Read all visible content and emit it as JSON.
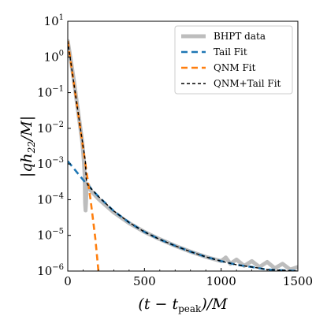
{
  "chart_data": {
    "type": "line",
    "title": "",
    "xlabel": "(t − t_peak)/M",
    "ylabel": "|q h22/M|",
    "xlim": [
      0,
      1500
    ],
    "ylim": [
      1e-06,
      10
    ],
    "yscale": "log",
    "grid": false,
    "legend_position": "top-right",
    "x_ticks": [
      {
        "value": 0,
        "label": "0"
      },
      {
        "value": 500,
        "label": "500"
      },
      {
        "value": 1000,
        "label": "1000"
      },
      {
        "value": 1500,
        "label": "1500"
      }
    ],
    "y_ticks": [
      {
        "value": 10,
        "base": "10",
        "exp": "1"
      },
      {
        "value": 1,
        "base": "10",
        "exp": "0"
      },
      {
        "value": 0.1,
        "base": "10",
        "exp": "−1"
      },
      {
        "value": 0.01,
        "base": "10",
        "exp": "−2"
      },
      {
        "value": 0.001,
        "base": "10",
        "exp": "−3"
      },
      {
        "value": 0.0001,
        "base": "10",
        "exp": "−4"
      },
      {
        "value": 1e-05,
        "base": "10",
        "exp": "−5"
      },
      {
        "value": 1e-06,
        "base": "10",
        "exp": "−6"
      }
    ],
    "series": [
      {
        "name": "BHPT data",
        "color": "#bdbdbd",
        "style": "solid-thick",
        "points": [
          [
            0,
            2.8
          ],
          [
            20,
            0.8
          ],
          [
            40,
            0.22
          ],
          [
            60,
            0.05
          ],
          [
            80,
            0.012
          ],
          [
            95,
            0.004
          ],
          [
            105,
            0.0012
          ],
          [
            110,
            0.0005
          ],
          [
            113,
            8e-05
          ],
          [
            116,
            5e-05
          ],
          [
            119,
            8e-05
          ],
          [
            122,
            0.00018
          ],
          [
            126,
            0.00028
          ],
          [
            130,
            0.00022
          ],
          [
            135,
            0.00025
          ],
          [
            150,
            0.00018
          ],
          [
            200,
            0.000105
          ],
          [
            300,
            4.4e-05
          ],
          [
            400,
            2.2e-05
          ],
          [
            500,
            1.25e-05
          ],
          [
            600,
            7.8e-06
          ],
          [
            700,
            5.1e-06
          ],
          [
            800,
            3.5e-06
          ],
          [
            900,
            2.5e-06
          ],
          [
            1000,
            1.9e-06
          ],
          [
            1030,
            2.4e-06
          ],
          [
            1060,
            1.6e-06
          ],
          [
            1100,
            2.1e-06
          ],
          [
            1150,
            1.4e-06
          ],
          [
            1200,
            1.9e-06
          ],
          [
            1250,
            1.3e-06
          ],
          [
            1300,
            1.8e-06
          ],
          [
            1350,
            1.2e-06
          ],
          [
            1400,
            1.6e-06
          ],
          [
            1450,
            1.1e-06
          ],
          [
            1500,
            1.3e-06
          ]
        ]
      },
      {
        "name": "Tail Fit",
        "color": "#1f77b4",
        "style": "dashed",
        "points": [
          [
            0,
            0.0012
          ],
          [
            50,
            0.00066
          ],
          [
            100,
            0.00036
          ],
          [
            150,
            0.00021
          ],
          [
            200,
            0.000123
          ],
          [
            300,
            4.8e-05
          ],
          [
            400,
            2.3e-05
          ],
          [
            500,
            1.25e-05
          ],
          [
            600,
            7.7e-06
          ],
          [
            700,
            5.1e-06
          ],
          [
            800,
            3.5e-06
          ],
          [
            900,
            2.5e-06
          ],
          [
            1000,
            1.9e-06
          ],
          [
            1100,
            1.5e-06
          ],
          [
            1200,
            1.3e-06
          ],
          [
            1300,
            1.1e-06
          ],
          [
            1400,
            1.05e-06
          ],
          [
            1500,
            1e-06
          ]
        ]
      },
      {
        "name": "QNM Fit",
        "color": "#ff7f0e",
        "style": "dashed",
        "points": [
          [
            0,
            2.8
          ],
          [
            50,
            0.09
          ],
          [
            100,
            0.0028
          ],
          [
            150,
            9e-05
          ],
          [
            180,
            8e-06
          ],
          [
            200,
            1e-06
          ]
        ]
      },
      {
        "name": "QNM+Tail Fit",
        "color": "#000000",
        "style": "dashed-thin",
        "points": [
          [
            0,
            2.8
          ],
          [
            50,
            0.09
          ],
          [
            100,
            0.0031
          ],
          [
            115,
            0.0012
          ],
          [
            120,
            0.0004
          ],
          [
            126,
            0.00028
          ],
          [
            135,
            0.00025
          ],
          [
            150,
            0.00021
          ],
          [
            200,
            0.000123
          ],
          [
            300,
            4.8e-05
          ],
          [
            400,
            2.3e-05
          ],
          [
            500,
            1.25e-05
          ],
          [
            600,
            7.7e-06
          ],
          [
            700,
            5.1e-06
          ],
          [
            800,
            3.5e-06
          ],
          [
            900,
            2.5e-06
          ],
          [
            1000,
            1.9e-06
          ],
          [
            1100,
            1.5e-06
          ],
          [
            1200,
            1.3e-06
          ],
          [
            1300,
            1.1e-06
          ],
          [
            1400,
            1.05e-06
          ],
          [
            1500,
            1e-06
          ]
        ]
      }
    ]
  }
}
